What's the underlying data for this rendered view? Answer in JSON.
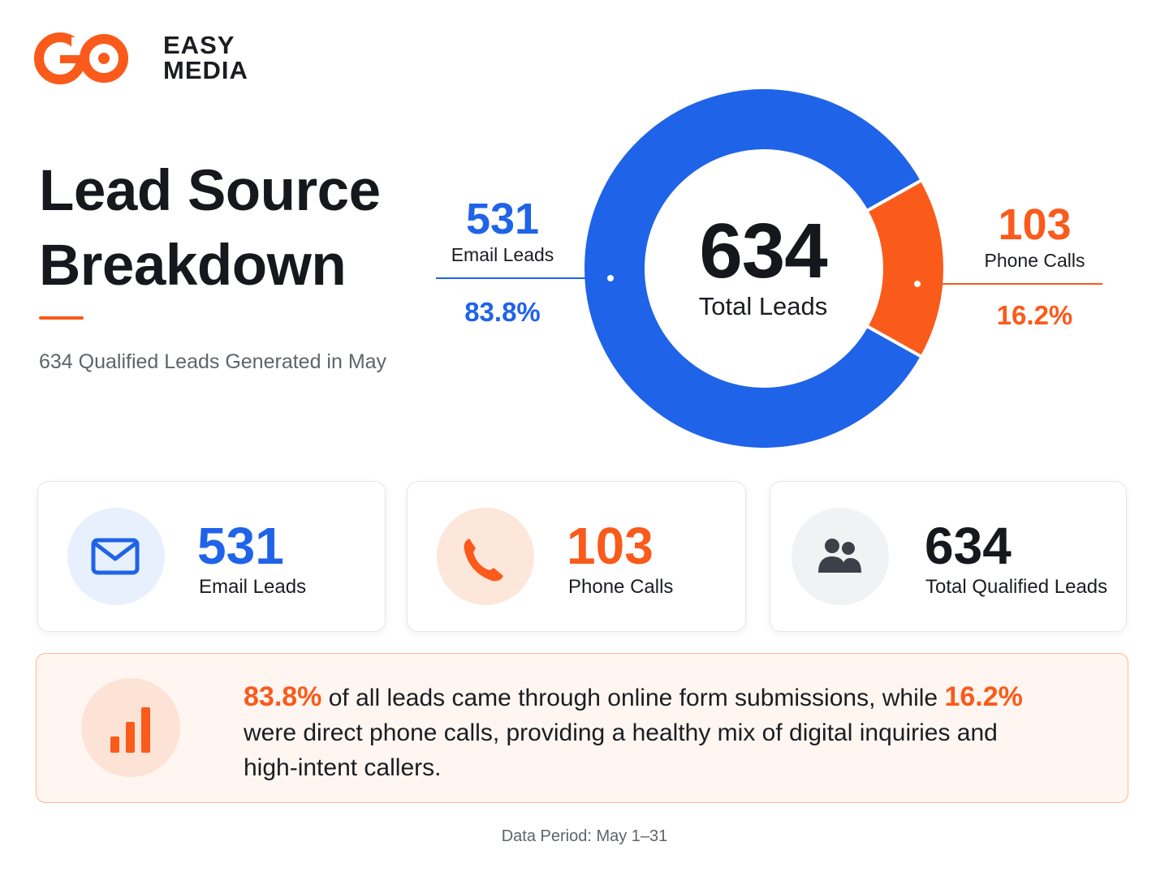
{
  "brand": {
    "word1": "EASY",
    "word2": "MEDIA",
    "mark": "GO"
  },
  "header": {
    "title_line1": "Lead Source",
    "title_line2": "Breakdown",
    "subtitle": "634 Qualified Leads Generated in May"
  },
  "colors": {
    "email": "#1f63e8",
    "phone": "#fa5a1a",
    "accent": "#fa5a1a",
    "neutral": "#3c4048"
  },
  "chart_data": {
    "type": "pie",
    "style": "donut",
    "title": "",
    "center_value": "634",
    "center_label": "Total Leads",
    "slices": [
      {
        "name": "Email Leads",
        "value": 531,
        "value_label": "531",
        "percent": 83.8,
        "percent_label": "83.8%",
        "color": "#1f63e8"
      },
      {
        "name": "Phone Calls",
        "value": 103,
        "value_label": "103",
        "percent": 16.2,
        "percent_label": "16.2%",
        "color": "#fa5a1a"
      }
    ]
  },
  "cards": [
    {
      "value": "531",
      "label": "Email Leads",
      "icon": "envelope-icon",
      "color": "#1f63e8",
      "badge_bg": "#e8f0fd"
    },
    {
      "value": "103",
      "label": "Phone Calls",
      "icon": "phone-icon",
      "color": "#fa5a1a",
      "badge_bg": "#fde6da"
    },
    {
      "value": "634",
      "label": "Total Qualified Leads",
      "icon": "users-icon",
      "color": "#16181d",
      "badge_bg": "#f1f2f4"
    }
  ],
  "insight": {
    "icon": "bar-chart-icon",
    "highlight1": "83.8%",
    "text1": " of all leads came through online form submissions, while ",
    "highlight2": "16.2%",
    "text2": " were direct phone calls, providing a healthy mix of digital inquiries and high-intent callers."
  },
  "footer": {
    "period": "Data Period: May 1–31"
  }
}
